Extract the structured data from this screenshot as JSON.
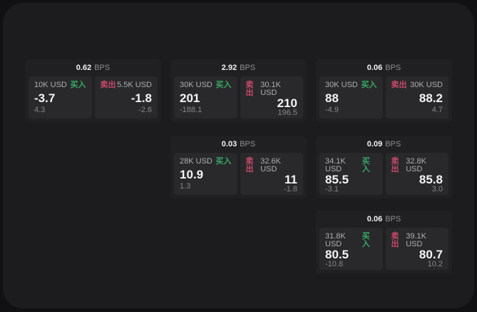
{
  "labels": {
    "bps_unit": "BPS",
    "buy": "买入",
    "sell": "卖出"
  },
  "colors": {
    "background": "#111113",
    "panel": "#1c1c1e",
    "card": "#202022",
    "tile": "#29292b",
    "buy_green": "#36a866",
    "sell_red": "#c7496a"
  },
  "cards": [
    {
      "bps": "0.62",
      "buy": {
        "size": "10K USD",
        "price": "-3.7",
        "change": "4.3"
      },
      "sell": {
        "size": "5.5K USD",
        "price": "-1.8",
        "change": "-2.6"
      }
    },
    {
      "bps": "2.92",
      "buy": {
        "size": "30K USD",
        "price": "201",
        "change": "-188.1"
      },
      "sell": {
        "size": "30.1K USD",
        "price": "210",
        "change": "196.5"
      }
    },
    {
      "bps": "0.06",
      "buy": {
        "size": "30K USD",
        "price": "88",
        "change": "-4.9"
      },
      "sell": {
        "size": "30K USD",
        "price": "88.2",
        "change": "4.7"
      }
    },
    {
      "bps": "0.03",
      "buy": {
        "size": "28K USD",
        "price": "10.9",
        "change": "1.3"
      },
      "sell": {
        "size": "32.6K USD",
        "price": "11",
        "change": "-1.8"
      }
    },
    {
      "bps": "0.09",
      "buy": {
        "size": "34.1K USD",
        "price": "85.5",
        "change": "-3.1"
      },
      "sell": {
        "size": "32.8K USD",
        "price": "85.8",
        "change": "3.0"
      }
    },
    {
      "bps": "0.06",
      "buy": {
        "size": "31.8K USD",
        "price": "80.5",
        "change": "-10.8"
      },
      "sell": {
        "size": "39.1K USD",
        "price": "80.7",
        "change": "10.2"
      }
    }
  ]
}
